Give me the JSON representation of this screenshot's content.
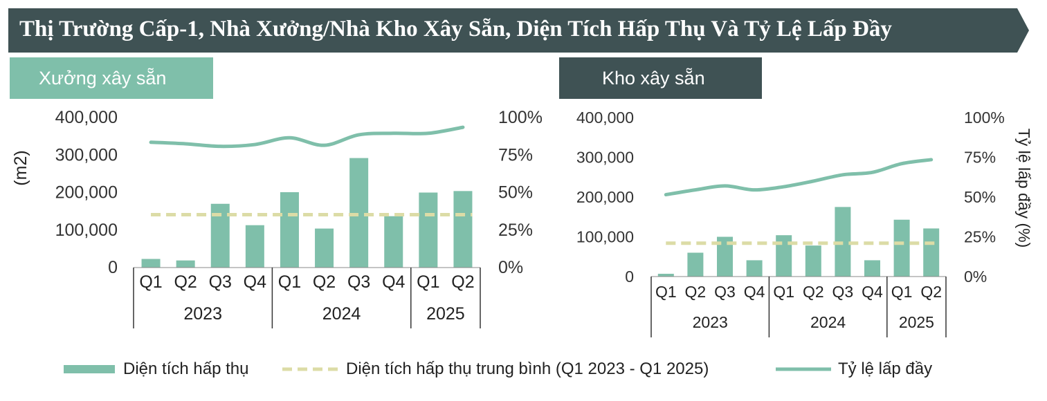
{
  "title": "Thị Trường Cấp-1, Nhà Xưởng/Nhà Kho Xây Sẵn, Diện Tích Hấp Thụ Và Tỷ Lệ Lấp Đầy",
  "colors": {
    "banner": "#3f5254",
    "bar": "#7fbfaa",
    "avg_line": "#dcdca6",
    "rate_line": "#7fbfaa",
    "tag_left": "#7fbfaa",
    "tag_right": "#3f5254"
  },
  "legend": {
    "bar_label": "Diện tích hấp thụ",
    "avg_label": "Diện tích hấp thụ trung bình (Q1 2023 - Q1 2025)",
    "line_label": "Tỷ lệ lấp đầy"
  },
  "chart_data": [
    {
      "type": "bar",
      "panel_title": "Xưởng xây sẵn",
      "categories": [
        "Q1",
        "Q2",
        "Q3",
        "Q4",
        "Q1",
        "Q2",
        "Q3",
        "Q4",
        "Q1",
        "Q2"
      ],
      "groups": [
        {
          "label": "2023",
          "count": 4
        },
        {
          "label": "2024",
          "count": 4
        },
        {
          "label": "2025",
          "count": 2
        }
      ],
      "ylabel": "(m2)",
      "y2label": "",
      "y_ticks": [
        "400,000",
        "300,000",
        "200,000",
        "100,000",
        "0"
      ],
      "y2_ticks": [
        "100%",
        "75%",
        "50%",
        "25%",
        "0%"
      ],
      "ylim": [
        0,
        400000
      ],
      "y2lim": [
        0,
        100
      ],
      "series": [
        {
          "name": "Diện tích hấp thụ",
          "type": "bar",
          "values": [
            23000,
            19000,
            170000,
            113000,
            201000,
            104000,
            292000,
            137000,
            200000,
            204000
          ]
        },
        {
          "name": "Diện tích hấp thụ trung bình (Q1 2023 - Q1 2025)",
          "type": "line-dashed",
          "values": [
            141000,
            141000,
            141000,
            141000,
            141000,
            141000,
            141000,
            141000,
            141000,
            141000
          ]
        },
        {
          "name": "Tỷ lệ lấp đầy",
          "type": "line",
          "axis": "right",
          "values": [
            83.5,
            82.5,
            80.8,
            82.0,
            86.5,
            81.5,
            88.5,
            89.5,
            89.5,
            93.5
          ]
        }
      ]
    },
    {
      "type": "bar",
      "panel_title": "Kho xây sẵn",
      "categories": [
        "Q1",
        "Q2",
        "Q3",
        "Q4",
        "Q1",
        "Q2",
        "Q3",
        "Q4",
        "Q1",
        "Q2"
      ],
      "groups": [
        {
          "label": "2023",
          "count": 4
        },
        {
          "label": "2024",
          "count": 4
        },
        {
          "label": "2025",
          "count": 2
        }
      ],
      "ylabel": "",
      "y2label": "Tỷ lệ lấp đầy (%)",
      "y_ticks": [
        "400,000",
        "300,000",
        "200,000",
        "100,000",
        "0"
      ],
      "y2_ticks": [
        "100%",
        "75%",
        "50%",
        "25%",
        "0%"
      ],
      "ylim": [
        0,
        400000
      ],
      "y2lim": [
        0,
        100
      ],
      "series": [
        {
          "name": "Diện tích hấp thụ",
          "type": "bar",
          "values": [
            7000,
            60000,
            100000,
            41000,
            104000,
            78000,
            175000,
            41000,
            143000,
            121000
          ]
        },
        {
          "name": "Diện tích hấp thụ trung bình (Q1 2023 - Q1 2025)",
          "type": "line-dashed",
          "values": [
            84000,
            84000,
            84000,
            84000,
            84000,
            84000,
            84000,
            84000,
            84000,
            84000
          ]
        },
        {
          "name": "Tỷ lệ lấp đầy",
          "type": "line",
          "axis": "right",
          "values": [
            51.5,
            54.5,
            57.0,
            54.5,
            56.5,
            60.0,
            64.0,
            65.5,
            71.0,
            73.5
          ]
        }
      ]
    }
  ]
}
